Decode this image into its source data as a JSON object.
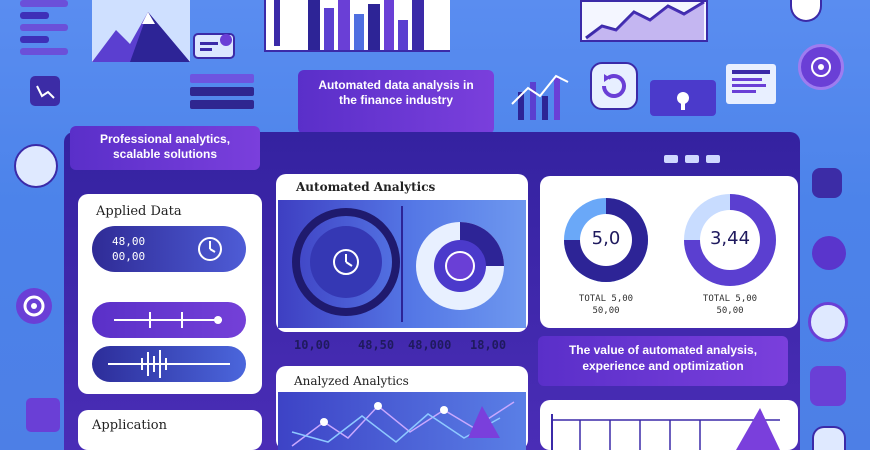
{
  "callouts": {
    "top": "Automated data analysis in the finance industry",
    "left": "Professional analytics, scalable solutions",
    "right": "The value of automated analysis, experience and optimization"
  },
  "cards": {
    "applied": {
      "title": "Applied Data",
      "pill_line1": "48,00",
      "pill_line2": "00,00"
    },
    "automated": {
      "title": "Automated Analytics",
      "values": [
        "10,00",
        "48,50",
        "48,000",
        "18,00"
      ]
    },
    "analyzed": {
      "title": "Analyzed Analytics"
    },
    "application": {
      "title": "Application"
    },
    "donuts": {
      "left_value": "5,0",
      "right_value": "3,44",
      "left_caption_1": "TOTAL 5,00",
      "left_caption_2": "50,00",
      "right_caption_1": "TOTAL 5,00",
      "right_caption_2": "50,00"
    }
  },
  "colors": {
    "background": "#4e84ea",
    "monitor": "#3a26a8",
    "accent_purple": "#6a3fd6",
    "accent_blue": "#3a60d8"
  }
}
